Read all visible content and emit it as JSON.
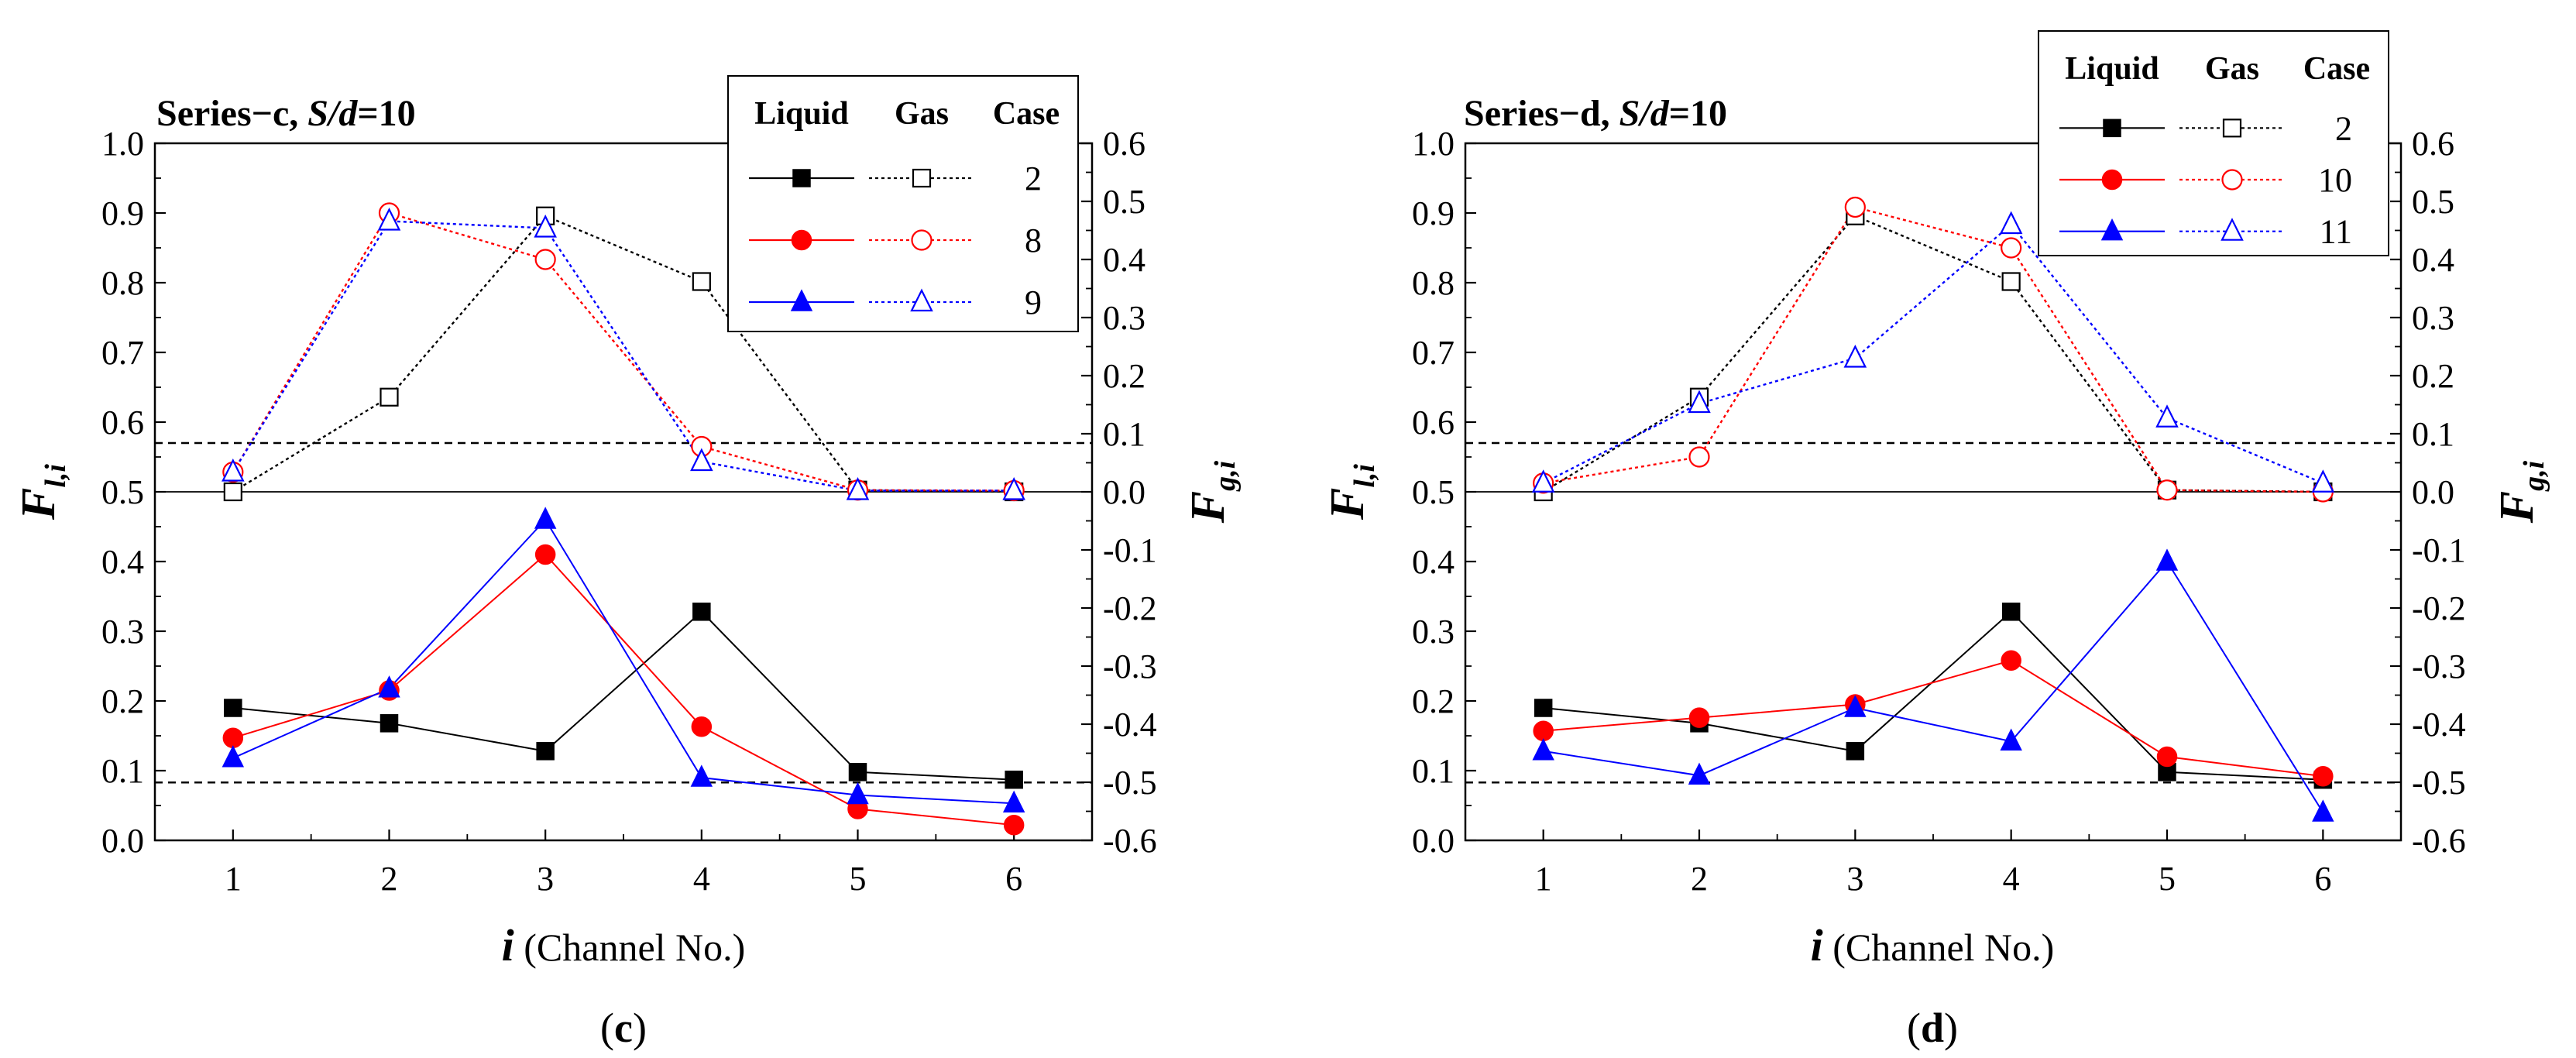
{
  "chart_data": [
    {
      "type": "line",
      "panel_label": "(c)",
      "title_prefix": "Series−c, ",
      "title_ratio": "S/d",
      "title_suffix": "=10",
      "xlabel_var": "i",
      "xlabel_rest": " (Channel No.)",
      "ylabel_left_main": "F",
      "ylabel_left_sub": "l,i",
      "ylabel_right_main": "F",
      "ylabel_right_sub": "g,i",
      "x": [
        1,
        2,
        3,
        4,
        5,
        6
      ],
      "xticks": [
        "1",
        "2",
        "3",
        "4",
        "5",
        "6"
      ],
      "ylim_left": [
        0.0,
        1.0
      ],
      "yticks_left": [
        "0.0",
        "0.1",
        "0.2",
        "0.3",
        "0.4",
        "0.5",
        "0.6",
        "0.7",
        "0.8",
        "0.9",
        "1.0"
      ],
      "ylim_right": [
        -0.6,
        0.6
      ],
      "yticks_right": [
        "-0.6",
        "-0.5",
        "-0.4",
        "-0.3",
        "-0.2",
        "-0.1",
        "0.0",
        "0.1",
        "0.2",
        "0.3",
        "0.4",
        "0.5",
        "0.6"
      ],
      "reference_lines_left": [
        0.5
      ],
      "dashed_lines_left": [
        0.57,
        0.083
      ],
      "legend_headers": [
        "Liquid",
        "Gas",
        "Case"
      ],
      "legend_position": "top-right",
      "series": [
        {
          "case": "2",
          "color": "#000000",
          "marker": "square",
          "liquid": [
            0.19,
            0.168,
            0.128,
            0.328,
            0.098,
            0.087
          ],
          "gas": [
            0.0,
            0.163,
            0.475,
            0.362,
            0.003,
            0.0
          ]
        },
        {
          "case": "8",
          "color": "#ff0000",
          "marker": "circle",
          "liquid": [
            0.147,
            0.215,
            0.41,
            0.163,
            0.045,
            0.022
          ],
          "gas": [
            0.034,
            0.48,
            0.4,
            0.078,
            0.003,
            0.002
          ]
        },
        {
          "case": "9",
          "color": "#0000ff",
          "marker": "triangle",
          "liquid": [
            0.118,
            0.218,
            0.46,
            0.09,
            0.065,
            0.053
          ],
          "gas": [
            0.034,
            0.466,
            0.454,
            0.052,
            0.002,
            0.002
          ]
        }
      ]
    },
    {
      "type": "line",
      "panel_label": "(d)",
      "title_prefix": "Series−d, ",
      "title_ratio": "S/d",
      "title_suffix": "=10",
      "xlabel_var": "i",
      "xlabel_rest": " (Channel No.)",
      "ylabel_left_main": "F",
      "ylabel_left_sub": "l,i",
      "ylabel_right_main": "F",
      "ylabel_right_sub": "g,i",
      "x": [
        1,
        2,
        3,
        4,
        5,
        6
      ],
      "xticks": [
        "1",
        "2",
        "3",
        "4",
        "5",
        "6"
      ],
      "ylim_left": [
        0.0,
        1.0
      ],
      "yticks_left": [
        "0.0",
        "0.1",
        "0.2",
        "0.3",
        "0.4",
        "0.5",
        "0.6",
        "0.7",
        "0.8",
        "0.9",
        "1.0"
      ],
      "ylim_right": [
        -0.6,
        0.6
      ],
      "yticks_right": [
        "-0.6",
        "-0.5",
        "-0.4",
        "-0.3",
        "-0.2",
        "-0.1",
        "0.0",
        "0.1",
        "0.2",
        "0.3",
        "0.4",
        "0.5",
        "0.6"
      ],
      "reference_lines_left": [
        0.5
      ],
      "dashed_lines_left": [
        0.57,
        0.083
      ],
      "legend_headers": [
        "Liquid",
        "Gas",
        "Case"
      ],
      "legend_position": "top-right",
      "series": [
        {
          "case": "2",
          "color": "#000000",
          "marker": "square",
          "liquid": [
            0.19,
            0.168,
            0.128,
            0.328,
            0.098,
            0.087
          ],
          "gas": [
            0.0,
            0.163,
            0.475,
            0.362,
            0.003,
            0.0
          ]
        },
        {
          "case": "10",
          "color": "#ff0000",
          "marker": "circle",
          "liquid": [
            0.157,
            0.176,
            0.195,
            0.258,
            0.12,
            0.092
          ],
          "gas": [
            0.015,
            0.06,
            0.49,
            0.42,
            0.003,
            0.0
          ]
        },
        {
          "case": "11",
          "color": "#0000ff",
          "marker": "triangle",
          "liquid": [
            0.128,
            0.093,
            0.19,
            0.142,
            0.4,
            0.04
          ],
          "gas": [
            0.015,
            0.152,
            0.23,
            0.46,
            0.127,
            0.015
          ]
        }
      ]
    }
  ]
}
